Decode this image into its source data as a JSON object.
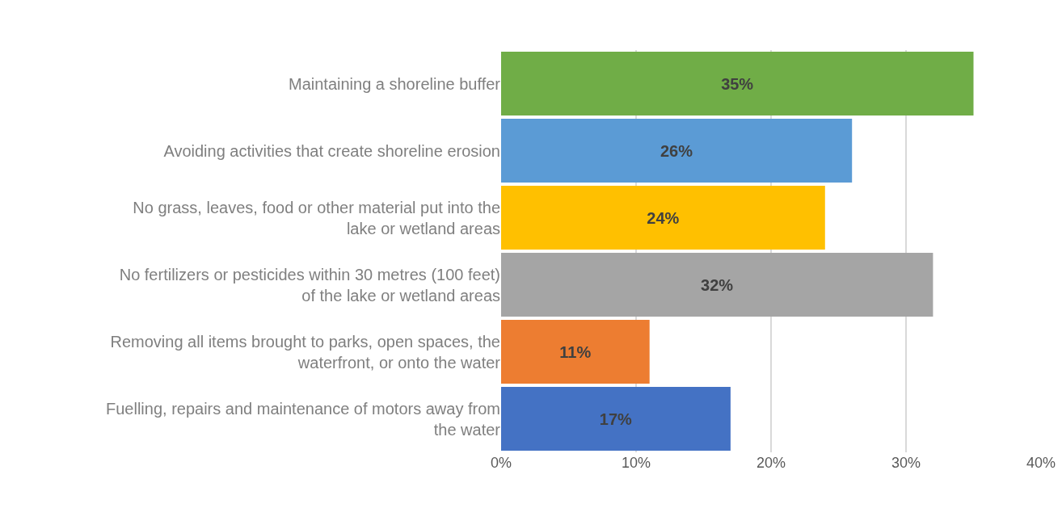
{
  "chart_data": {
    "type": "bar",
    "orientation": "horizontal",
    "categories": [
      "Maintaining a shoreline buffer",
      "Avoiding activities that create shoreline erosion",
      "No grass, leaves, food or other material put into the lake or wetland areas",
      "No fertilizers or pesticides within 30 metres (100 feet) of the lake or wetland areas",
      "Removing all items brought to parks, open spaces, the waterfront, or onto the water",
      "Fuelling, repairs and maintenance of motors away from the water"
    ],
    "values": [
      35,
      26,
      24,
      32,
      11,
      17
    ],
    "value_labels": [
      "35%",
      "26%",
      "24%",
      "32%",
      "11%",
      "17%"
    ],
    "colors": [
      "#70ad47",
      "#5b9bd5",
      "#ffc000",
      "#a5a5a5",
      "#ed7d31",
      "#4472c4"
    ],
    "xlim": [
      0,
      40
    ],
    "xticks": [
      {
        "value": 0,
        "label": "0%"
      },
      {
        "value": 10,
        "label": "10%"
      },
      {
        "value": 20,
        "label": "20%"
      },
      {
        "value": 30,
        "label": "30%"
      },
      {
        "value": 40,
        "label": "40%"
      }
    ],
    "grid": "x"
  }
}
